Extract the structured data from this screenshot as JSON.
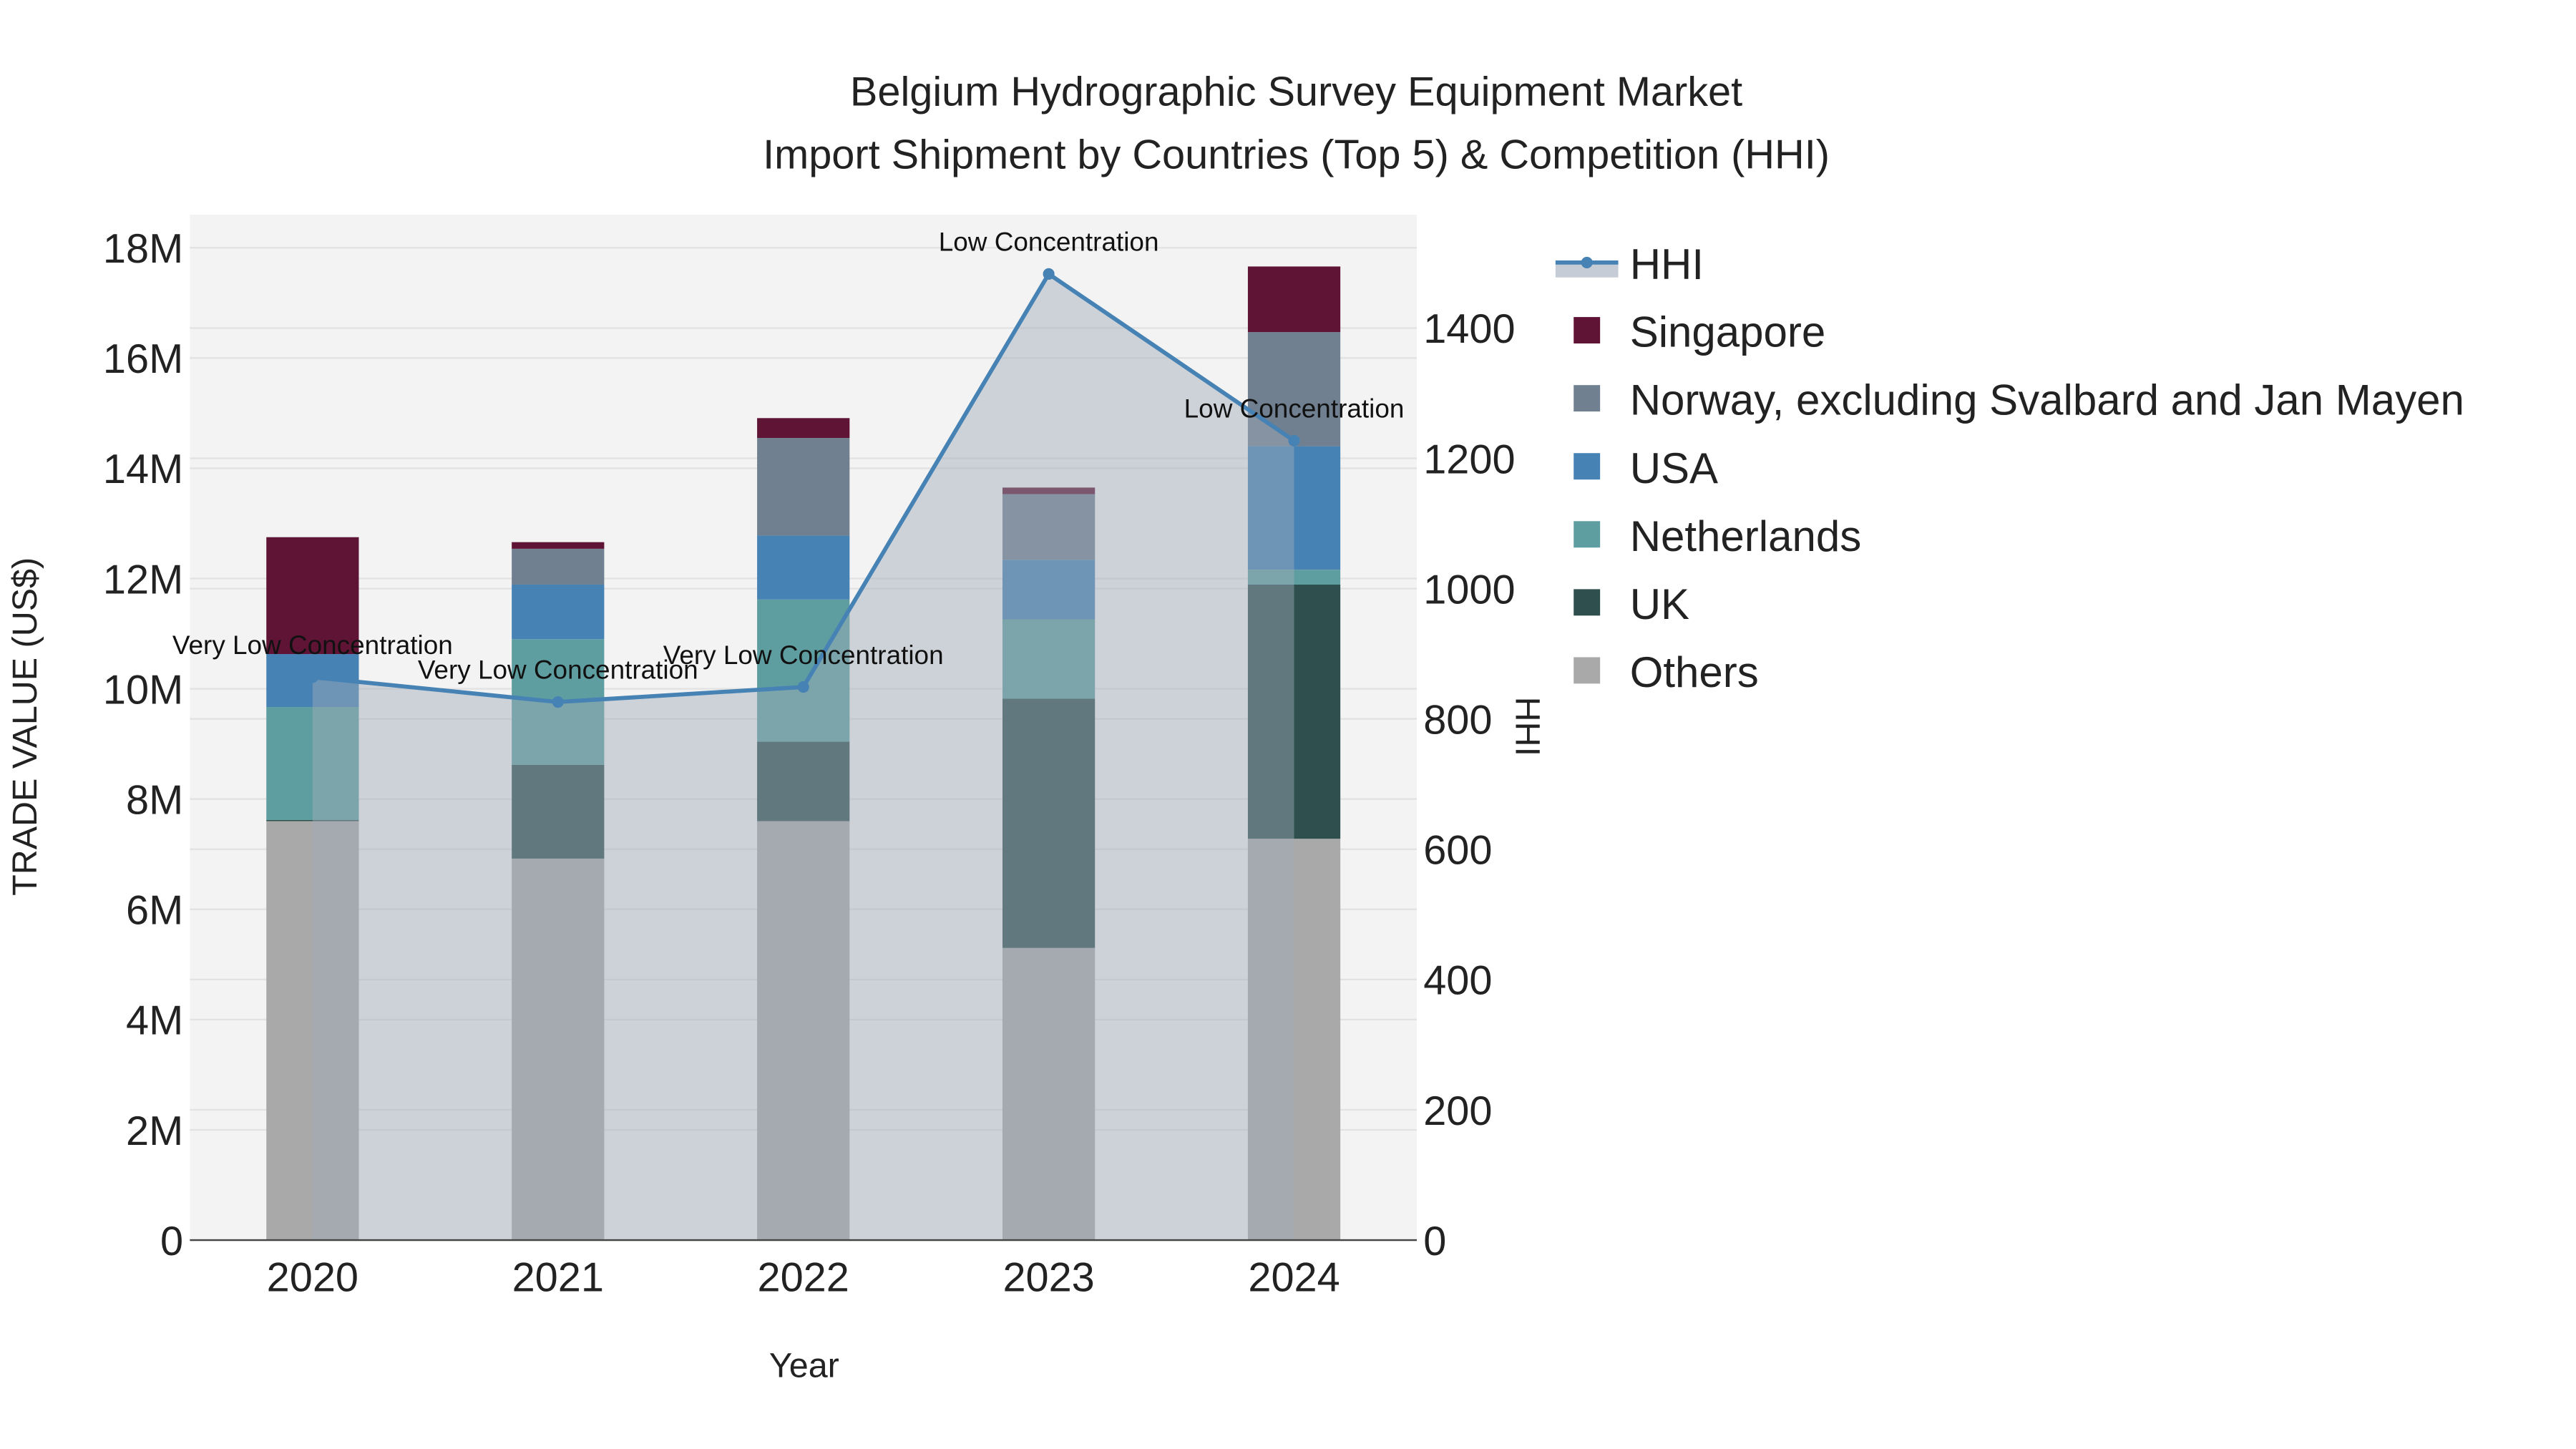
{
  "chart_data": {
    "type": "bar",
    "title": "Belgium Hydrographic Survey Equipment Market",
    "subtitle": "Import Shipment by Countries (Top 5) & Competition (HHI)",
    "xlabel": "Year",
    "ylabel": "TRADE VALUE (US$)",
    "y2label": "HHI",
    "categories": [
      "2020",
      "2021",
      "2022",
      "2023",
      "2024"
    ],
    "ylim": [
      0,
      18600000
    ],
    "y_ticks": [
      0,
      2000000,
      4000000,
      6000000,
      8000000,
      10000000,
      12000000,
      14000000,
      16000000,
      18000000
    ],
    "y_tick_labels": [
      "0",
      "2M",
      "4M",
      "6M",
      "8M",
      "10M",
      "12M",
      "14M",
      "16M",
      "18M"
    ],
    "y2lim": [
      0,
      1574
    ],
    "y2_ticks": [
      0,
      200,
      400,
      600,
      800,
      1000,
      1200,
      1400
    ],
    "y2_tick_labels": [
      "0",
      "200",
      "400",
      "600",
      "800",
      "1000",
      "1200",
      "1400"
    ],
    "stacked": true,
    "series": [
      {
        "name": "Others",
        "color": "#a9a9a9",
        "values": [
          7600000,
          6920000,
          7600000,
          5300000,
          7280000
        ]
      },
      {
        "name": "UK",
        "color": "#2f4f4f",
        "values": [
          20000,
          1700000,
          1440000,
          4520000,
          4610000
        ]
      },
      {
        "name": "Netherlands",
        "color": "#5f9ea0",
        "values": [
          2050000,
          2280000,
          2580000,
          1440000,
          270000
        ]
      },
      {
        "name": "USA",
        "color": "#4682b4",
        "values": [
          960000,
          990000,
          1160000,
          1080000,
          2240000
        ]
      },
      {
        "name": "Norway, excluding Svalbard and Jan Mayen",
        "color": "#708090",
        "values": [
          0,
          650000,
          1770000,
          1190000,
          2070000
        ]
      },
      {
        "name": "Singapore",
        "color": "#5f1435",
        "values": [
          2120000,
          120000,
          360000,
          120000,
          1190000
        ]
      }
    ],
    "hhi": {
      "name": "HHI",
      "color": "#4682b4",
      "values": [
        864,
        826,
        849,
        1483,
        1227
      ],
      "labels": [
        "Very Low Concentration",
        "Very Low Concentration",
        "Very Low Concentration",
        "Low Concentration",
        "Low Concentration"
      ]
    },
    "legend_order": [
      "HHI",
      "Singapore",
      "Norway, excluding Svalbard and Jan Mayen",
      "USA",
      "Netherlands",
      "UK",
      "Others"
    ],
    "legend_placement": "right",
    "grid": true
  }
}
